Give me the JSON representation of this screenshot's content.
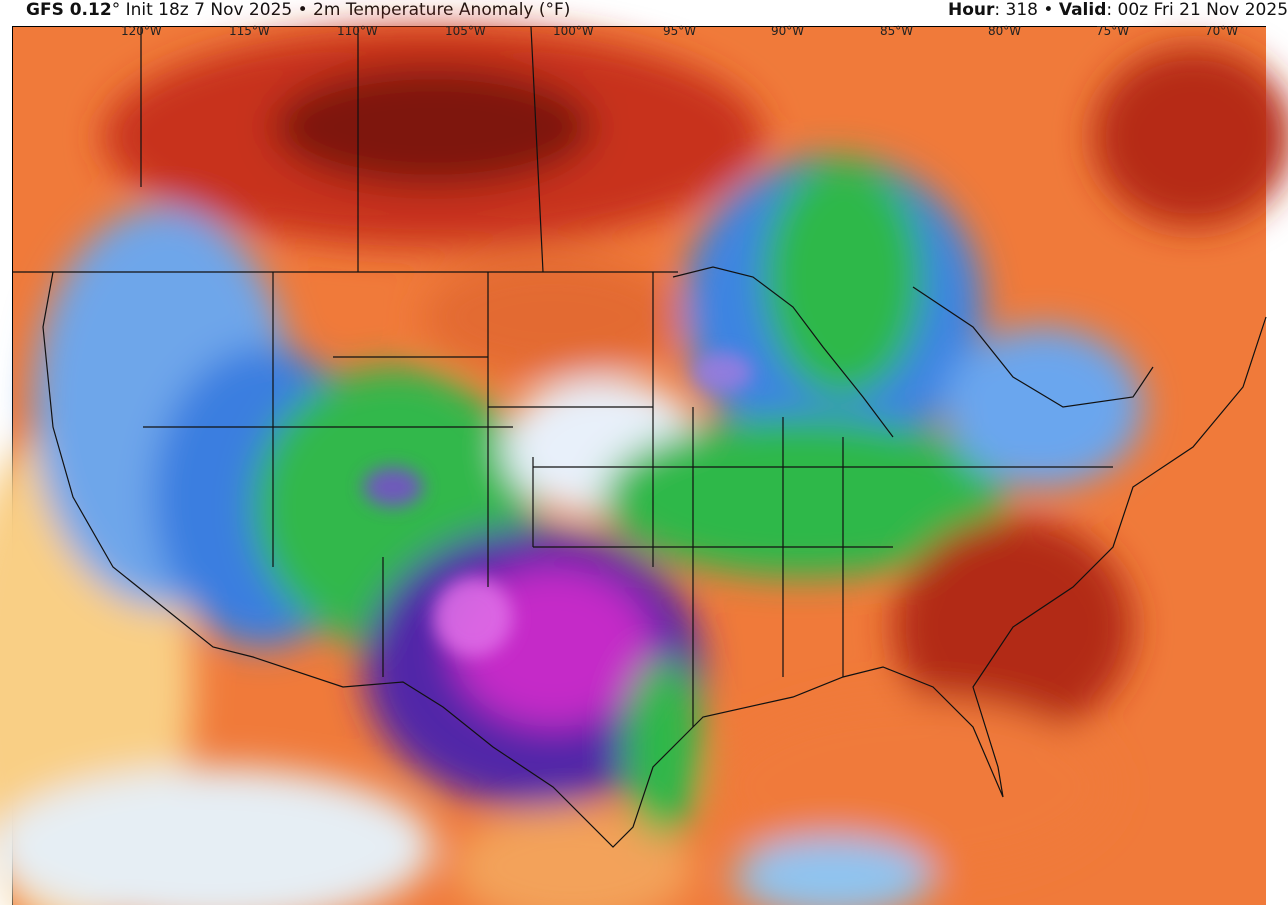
{
  "header": {
    "model": "GFS 0.12",
    "degree": "°",
    "init": "Init 18z 7 Nov 2025",
    "separator": "•",
    "field": "2m Temperature Anomaly (°F)",
    "hour_label": "Hour",
    "hour_value": ": 318",
    "valid_label": "Valid",
    "valid_value": ": 00z Fri 21 Nov 2025"
  },
  "map": {
    "longitude_labels": [
      "120°W",
      "115°W",
      "110°W",
      "105°W",
      "100°W",
      "95°W",
      "90°W",
      "85°W",
      "80°W",
      "75°W",
      "70°W"
    ],
    "colors": {
      "very_warm": "#8b1a0a",
      "warm": "#d8401c",
      "mild_warm": "#f3913d",
      "slight_warm": "#f9d27a",
      "neutral": "#e8f1f8",
      "slight_cold": "#9cc8f0",
      "cold": "#3d7fe0",
      "colder": "#2bb84a",
      "very_cold": "#5b2ab0",
      "extreme_cold": "#d030d0"
    }
  }
}
